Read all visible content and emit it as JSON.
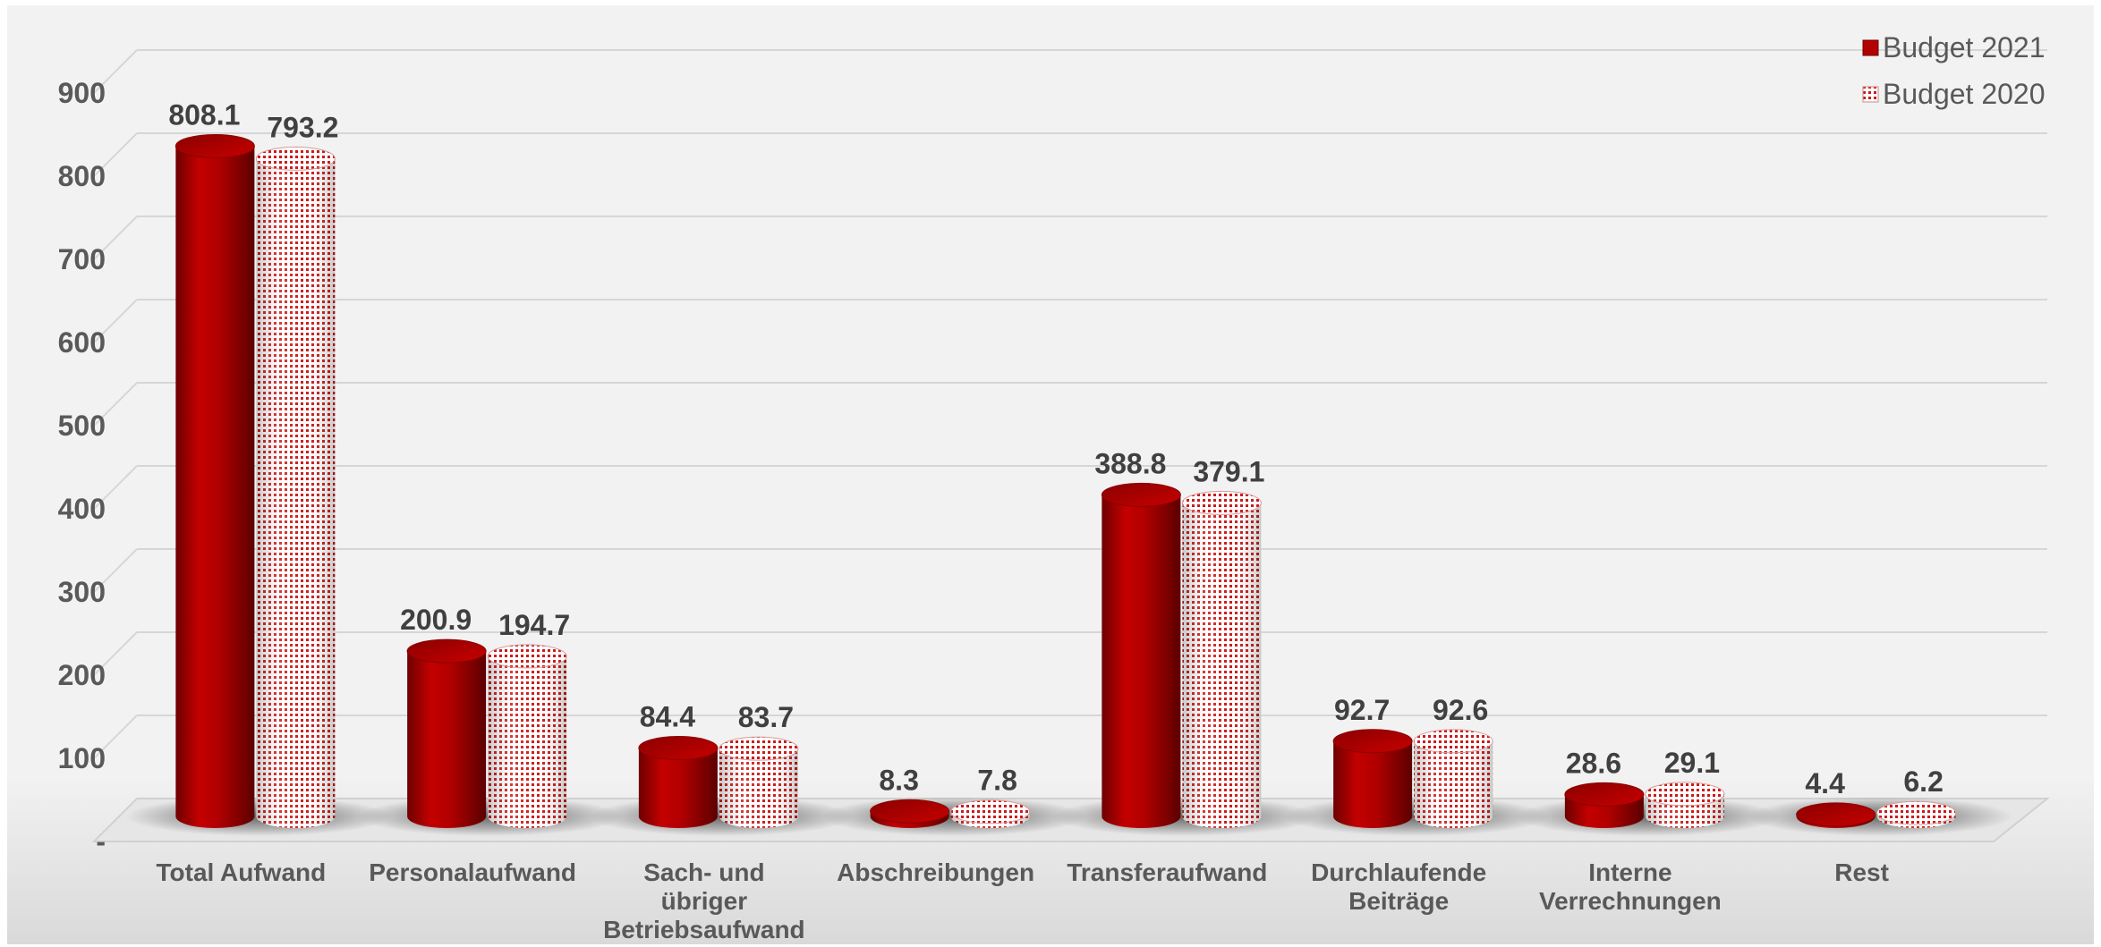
{
  "chart_data": {
    "type": "bar",
    "title": "",
    "xlabel": "",
    "ylabel": "",
    "ylim": [
      0,
      900
    ],
    "yticks": [
      "-",
      "100",
      "200",
      "300",
      "400",
      "500",
      "600",
      "700",
      "800",
      "900"
    ],
    "grid": true,
    "legend_position": "top-right",
    "categories": [
      [
        "Total Aufwand"
      ],
      [
        "Personalaufwand"
      ],
      [
        "Sach- und",
        "übriger",
        "Betriebsaufwand"
      ],
      [
        "Abschreibungen"
      ],
      [
        "Transferaufwand"
      ],
      [
        "Durchlaufende",
        "Beiträge"
      ],
      [
        "Interne",
        "Verrechnungen"
      ],
      [
        "Rest"
      ]
    ],
    "series": [
      {
        "name": "Budget 2021",
        "color": "#b30000",
        "pattern": "solid",
        "values": [
          808.1,
          200.9,
          84.4,
          8.3,
          388.8,
          92.7,
          28.6,
          4.4
        ],
        "labels": [
          "808.1",
          "200.9",
          "84.4",
          "8.3",
          "388.8",
          "92.7",
          "28.6",
          "4.4"
        ]
      },
      {
        "name": "Budget 2020",
        "color": "#c00000",
        "pattern": "dotted",
        "values": [
          793.2,
          194.7,
          83.7,
          7.8,
          379.1,
          92.6,
          29.1,
          6.2
        ],
        "labels": [
          "793.2",
          "194.7",
          "83.7",
          "7.8",
          "379.1",
          "92.6",
          "29.1",
          "6.2"
        ]
      }
    ]
  }
}
